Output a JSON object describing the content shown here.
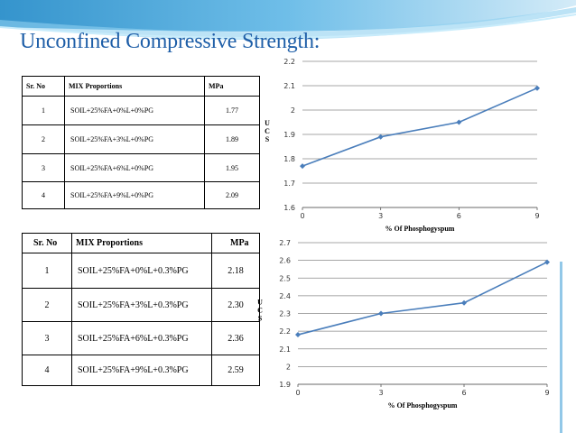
{
  "slide": {
    "title": "Unconfined Compressive Strength:"
  },
  "tables": [
    {
      "headers": [
        "Sr. No",
        "MIX Proportions",
        "MPa"
      ],
      "rows": [
        [
          "1",
          "SOIL+25%FA+0%L+0%PG",
          "1.77"
        ],
        [
          "2",
          "SOIL+25%FA+3%L+0%PG",
          "1.89"
        ],
        [
          "3",
          "SOIL+25%FA+6%L+0%PG",
          "1.95"
        ],
        [
          "4",
          "SOIL+25%FA+9%L+0%PG",
          "2.09"
        ]
      ]
    },
    {
      "headers": [
        "Sr. No",
        "MIX Proportions",
        "MPa"
      ],
      "rows": [
        [
          "1",
          "SOIL+25%FA+0%L+0.3%PG",
          "2.18"
        ],
        [
          "2",
          "SOIL+25%FA+3%L+0.3%PG",
          "2.30"
        ],
        [
          "3",
          "SOIL+25%FA+6%L+0.3%PG",
          "2.36"
        ],
        [
          "4",
          "SOIL+25%FA+9%L+0.3%PG",
          "2.59"
        ]
      ]
    }
  ],
  "chart_data": [
    {
      "type": "line",
      "x": [
        0,
        3,
        6,
        9
      ],
      "values": [
        1.77,
        1.89,
        1.95,
        2.09
      ],
      "xlabel": "% Of Phosphogyspum",
      "ylabel": "UCS",
      "ylim": [
        1.6,
        2.2
      ],
      "yticks": [
        "1.6",
        "1.7",
        "1.8",
        "1.9",
        "2",
        "2.1",
        "2.2"
      ],
      "xticks": [
        "0",
        "3",
        "6",
        "9"
      ],
      "grid": "horizontal",
      "line_color": "#4a7ebb"
    },
    {
      "type": "line",
      "x": [
        0,
        3,
        6,
        9
      ],
      "values": [
        2.18,
        2.3,
        2.36,
        2.59
      ],
      "xlabel": "% Of Phosphogyspum",
      "ylabel": "UCS",
      "ylim": [
        1.9,
        2.7
      ],
      "yticks": [
        "1.9",
        "2",
        "2.1",
        "2.2",
        "2.3",
        "2.4",
        "2.5",
        "2.6",
        "2.7"
      ],
      "xticks": [
        "0",
        "3",
        "6",
        "9"
      ],
      "grid": "horizontal",
      "line_color": "#4a7ebb"
    }
  ]
}
